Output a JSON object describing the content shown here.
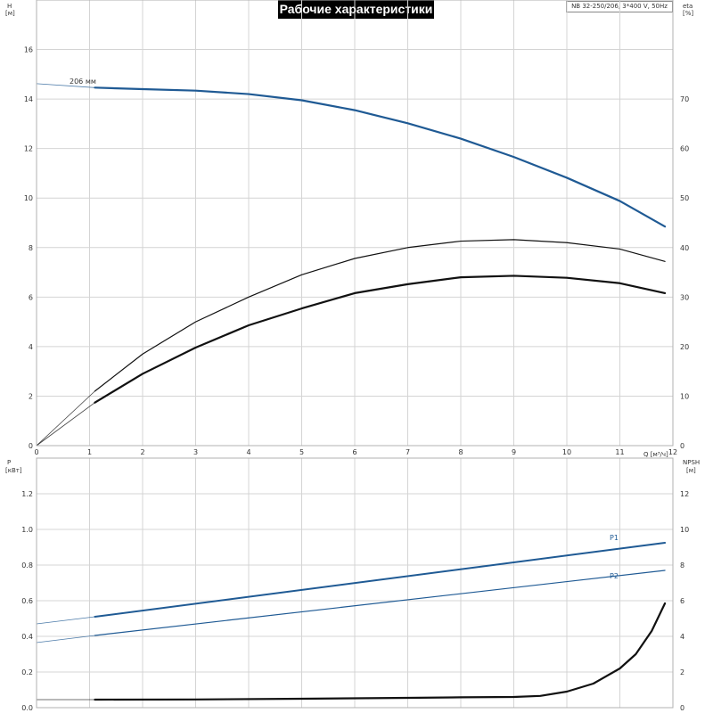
{
  "title": "Рабочие характеристики",
  "model": "NB 32-250/206, 3*400 V, 50Hz",
  "colors": {
    "blue": "#1f5a94",
    "black": "#111111",
    "grid": "#d4d4d4"
  },
  "chart_data": [
    {
      "type": "line",
      "panel": "top",
      "x_label": "Q [м³/ч]",
      "y_label_left": [
        "H",
        "[м]"
      ],
      "y_label_right": [
        "eta",
        "[%]"
      ],
      "xlim": [
        0,
        12
      ],
      "ylim_left": [
        0,
        18
      ],
      "ylim_right": [
        0,
        90
      ],
      "x_ticks": [
        0,
        1,
        2,
        3,
        4,
        5,
        6,
        7,
        8,
        9,
        10,
        11,
        12
      ],
      "y_ticks_left": [
        0,
        2,
        4,
        6,
        8,
        10,
        12,
        14,
        16
      ],
      "y_ticks_right": [
        0,
        10,
        20,
        30,
        40,
        50,
        60,
        70
      ],
      "grid": true,
      "series": [
        {
          "name": "206 мм",
          "axis": "left",
          "color": "blue",
          "x": [
            0,
            1.1,
            2,
            3,
            4,
            5,
            6,
            7,
            8,
            9,
            10,
            11,
            11.85
          ],
          "y": [
            14.62,
            14.46,
            14.4,
            14.34,
            14.2,
            13.95,
            13.55,
            13.02,
            12.4,
            11.66,
            10.82,
            9.88,
            8.85
          ]
        },
        {
          "axis": "right",
          "color": "black",
          "x": [
            0,
            1.1,
            2,
            3,
            4,
            5,
            6,
            7,
            8,
            9,
            10,
            11,
            11.85
          ],
          "y": [
            0,
            11,
            18.5,
            25,
            30,
            34.5,
            37.8,
            40,
            41.3,
            41.6,
            41,
            39.7,
            37.2
          ]
        },
        {
          "axis": "right",
          "color": "black",
          "x": [
            0,
            1.1,
            2,
            3,
            4,
            5,
            6,
            7,
            8,
            9,
            10,
            11,
            11.85
          ],
          "y": [
            0,
            8.7,
            14.5,
            19.8,
            24.3,
            27.7,
            30.8,
            32.6,
            34,
            34.3,
            33.9,
            32.8,
            30.8
          ]
        }
      ]
    },
    {
      "type": "line",
      "panel": "bottom",
      "y_label_left": [
        "P",
        "[кВт]"
      ],
      "y_label_right": [
        "NPSH",
        "[м]"
      ],
      "xlim": [
        0,
        12
      ],
      "ylim_left": [
        0,
        1.4
      ],
      "ylim_right": [
        0,
        14
      ],
      "y_ticks_left": [
        0.0,
        0.2,
        0.4,
        0.6,
        0.8,
        1.0,
        1.2
      ],
      "y_ticks_right": [
        0,
        2,
        4,
        6,
        8,
        10,
        12
      ],
      "grid": true,
      "series": [
        {
          "name": "P1",
          "axis": "left",
          "color": "blue",
          "x": [
            0,
            1.1,
            11.85
          ],
          "y": [
            0.47,
            0.51,
            0.925
          ]
        },
        {
          "name": "P2",
          "axis": "left",
          "color": "blue",
          "x": [
            0,
            1.1,
            11.85
          ],
          "y": [
            0.365,
            0.405,
            0.77
          ]
        },
        {
          "axis": "right",
          "color": "black",
          "x": [
            0,
            1.1,
            3,
            5,
            7,
            8,
            9,
            9.5,
            10,
            10.5,
            11,
            11.3,
            11.6,
            11.85
          ],
          "y": [
            0.45,
            0.45,
            0.46,
            0.5,
            0.55,
            0.58,
            0.6,
            0.66,
            0.9,
            1.35,
            2.2,
            3.0,
            4.3,
            5.85
          ]
        }
      ]
    }
  ]
}
